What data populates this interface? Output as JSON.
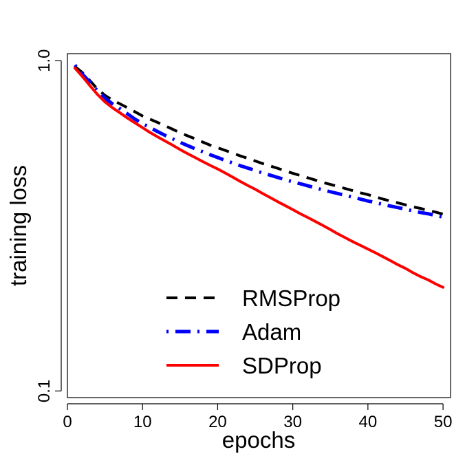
{
  "chart_data": {
    "type": "line",
    "title": "",
    "xlabel": "epochs",
    "ylabel": "training loss",
    "xlim": [
      0,
      51
    ],
    "ylim": [
      0.0955,
      1.05
    ],
    "y_scale": "log",
    "x_ticks": [
      0,
      10,
      20,
      30,
      40,
      50
    ],
    "x_tick_labels": [
      "0",
      "10",
      "20",
      "30",
      "40",
      "50"
    ],
    "y_ticks": [
      0.1,
      1.0
    ],
    "y_tick_labels": [
      "0.1",
      "1.0"
    ],
    "grid": false,
    "legend_position": "bottom-right",
    "series": [
      {
        "name": "RMSProp",
        "color": "#000000",
        "style": "dashed",
        "x": [
          1,
          2,
          3,
          4,
          5,
          6,
          7,
          8,
          9,
          10,
          11,
          12,
          13,
          14,
          15,
          16,
          17,
          18,
          19,
          20,
          21,
          22,
          23,
          24,
          25,
          26,
          27,
          28,
          29,
          30,
          31,
          32,
          33,
          34,
          35,
          36,
          37,
          38,
          39,
          40,
          41,
          42,
          43,
          44,
          45,
          46,
          47,
          48,
          49,
          50
        ],
        "y": [
          0.96,
          0.92,
          0.87,
          0.82,
          0.785,
          0.76,
          0.74,
          0.72,
          0.7,
          0.68,
          0.665,
          0.65,
          0.635,
          0.62,
          0.605,
          0.592,
          0.58,
          0.567,
          0.555,
          0.545,
          0.535,
          0.525,
          0.515,
          0.506,
          0.497,
          0.488,
          0.48,
          0.472,
          0.464,
          0.456,
          0.449,
          0.442,
          0.435,
          0.428,
          0.422,
          0.416,
          0.41,
          0.404,
          0.398,
          0.393,
          0.387,
          0.381,
          0.376,
          0.371,
          0.366,
          0.361,
          0.357,
          0.352,
          0.348,
          0.343
        ]
      },
      {
        "name": "Adam",
        "color": "#0000ff",
        "style": "dotdash",
        "x": [
          1,
          2,
          3,
          4,
          5,
          6,
          7,
          8,
          9,
          10,
          11,
          12,
          13,
          14,
          15,
          16,
          17,
          18,
          19,
          20,
          21,
          22,
          23,
          24,
          25,
          26,
          27,
          28,
          29,
          30,
          31,
          32,
          33,
          34,
          35,
          36,
          37,
          38,
          39,
          40,
          41,
          42,
          43,
          44,
          45,
          46,
          47,
          48,
          49,
          50
        ],
        "y": [
          0.97,
          0.91,
          0.86,
          0.81,
          0.77,
          0.74,
          0.715,
          0.69,
          0.665,
          0.645,
          0.627,
          0.61,
          0.594,
          0.58,
          0.566,
          0.553,
          0.541,
          0.53,
          0.519,
          0.509,
          0.499,
          0.49,
          0.481,
          0.473,
          0.465,
          0.457,
          0.45,
          0.443,
          0.436,
          0.43,
          0.424,
          0.418,
          0.412,
          0.406,
          0.401,
          0.396,
          0.391,
          0.386,
          0.381,
          0.376,
          0.372,
          0.367,
          0.363,
          0.359,
          0.355,
          0.351,
          0.347,
          0.344,
          0.34,
          0.336
        ]
      },
      {
        "name": "SDProp",
        "color": "#ff0000",
        "style": "solid",
        "x": [
          1,
          2,
          3,
          4,
          5,
          6,
          7,
          8,
          9,
          10,
          11,
          12,
          13,
          14,
          15,
          16,
          17,
          18,
          19,
          20,
          21,
          22,
          23,
          24,
          25,
          26,
          27,
          28,
          29,
          30,
          31,
          32,
          33,
          34,
          35,
          36,
          37,
          38,
          39,
          40,
          41,
          42,
          43,
          44,
          45,
          46,
          47,
          48,
          49,
          50
        ],
        "y": [
          0.95,
          0.895,
          0.84,
          0.79,
          0.75,
          0.72,
          0.695,
          0.67,
          0.648,
          0.627,
          0.606,
          0.588,
          0.571,
          0.555,
          0.538,
          0.523,
          0.509,
          0.495,
          0.482,
          0.47,
          0.457,
          0.444,
          0.431,
          0.419,
          0.408,
          0.396,
          0.385,
          0.374,
          0.364,
          0.354,
          0.344,
          0.335,
          0.326,
          0.317,
          0.308,
          0.299,
          0.291,
          0.283,
          0.276,
          0.269,
          0.262,
          0.255,
          0.248,
          0.241,
          0.235,
          0.228,
          0.222,
          0.217,
          0.211,
          0.206
        ]
      }
    ]
  }
}
